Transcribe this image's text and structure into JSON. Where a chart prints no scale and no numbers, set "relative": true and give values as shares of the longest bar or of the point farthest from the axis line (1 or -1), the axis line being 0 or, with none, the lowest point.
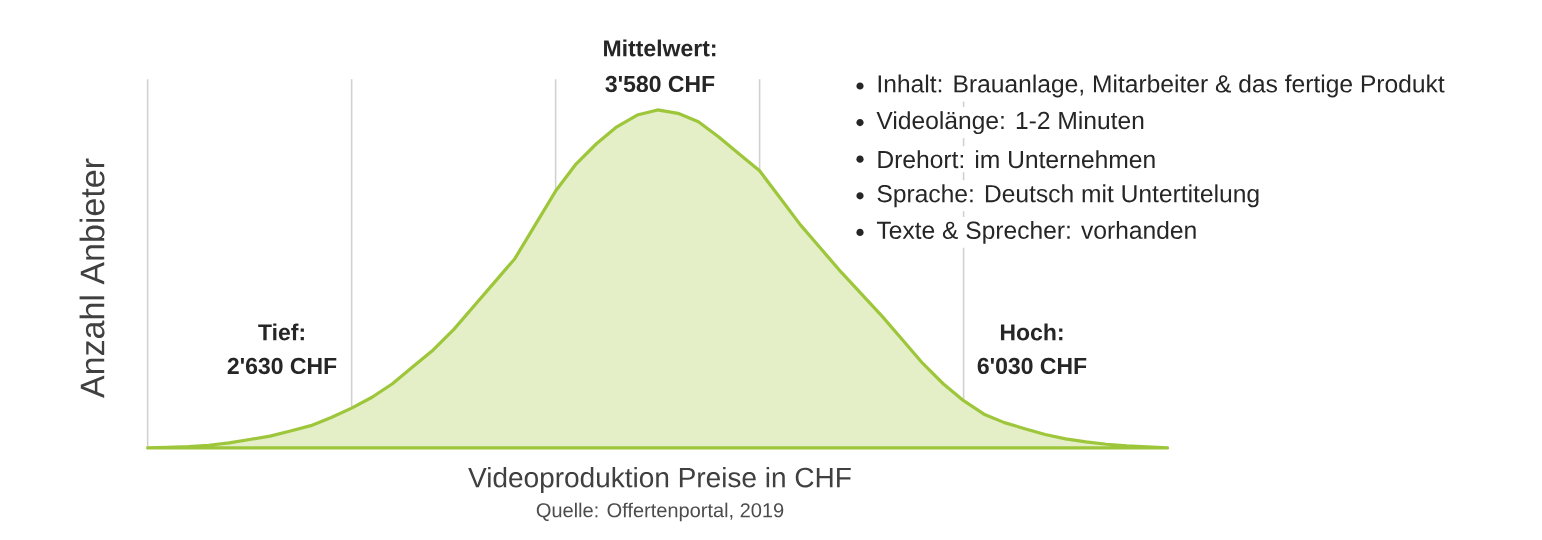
{
  "chart_data": {
    "type": "area",
    "relative": true,
    "xlabel": "Videoproduktion Preise in CHF",
    "ylabel": "Anzahl Anbieter",
    "grid": "x",
    "color": "#9dc63b",
    "categories": [
      null,
      null,
      null,
      null,
      null,
      null,
      null,
      null,
      null,
      null,
      null,
      null,
      null,
      null,
      null,
      null,
      null,
      null,
      null,
      null,
      null,
      null,
      null,
      null,
      null,
      null,
      null,
      null,
      null,
      null,
      null,
      null,
      null,
      null,
      null,
      null,
      null,
      null,
      null,
      null,
      null,
      null,
      null,
      null,
      null,
      null,
      null,
      null,
      null,
      null,
      null
    ],
    "values": [
      0,
      0.002,
      0.004,
      0.008,
      0.015,
      0.025,
      0.035,
      0.05,
      0.066,
      0.09,
      0.118,
      0.15,
      0.19,
      0.24,
      0.29,
      0.35,
      0.42,
      0.49,
      0.56,
      0.66,
      0.76,
      0.84,
      0.9,
      0.95,
      0.985,
      1,
      0.99,
      0.965,
      0.92,
      0.87,
      0.82,
      0.74,
      0.66,
      0.59,
      0.52,
      0.455,
      0.39,
      0.32,
      0.25,
      0.19,
      0.14,
      0.1,
      0.075,
      0.057,
      0.04,
      0.027,
      0.018,
      0.011,
      0.006,
      0.003,
      0
    ],
    "annotations": [
      "Mittelwert:",
      "3'580 CHF",
      "Tief:",
      "2'630 CHF",
      "Hoch:",
      "6'030 CHF",
      "Inhalt: Brauanlage, Mitarbeiter & das fertige Produkt",
      "Videolänge: 1-2 Minuten",
      "Drehort: im Unternehmen",
      "Sprache: Deutsch mit Untertitelung",
      "Texte & Sprecher: vorhanden",
      "Quelle: Offertenportal, 2019"
    ]
  }
}
